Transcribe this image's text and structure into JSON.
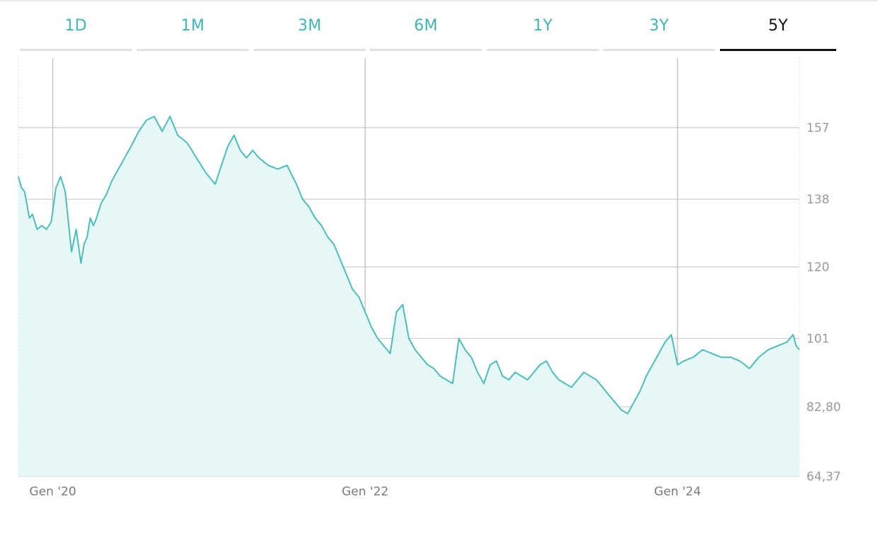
{
  "range_tabs": [
    {
      "label": "1D",
      "active": false
    },
    {
      "label": "1M",
      "active": false
    },
    {
      "label": "3M",
      "active": false
    },
    {
      "label": "6M",
      "active": false
    },
    {
      "label": "1Y",
      "active": false
    },
    {
      "label": "3Y",
      "active": false
    },
    {
      "label": "5Y",
      "active": true
    }
  ],
  "colors": {
    "accent": "#3fb6b3",
    "line": "#4dbdba",
    "fill": "#e6f7f7",
    "grid": "#cccccc",
    "active_tab": "#111111"
  },
  "chart_data": {
    "type": "area",
    "title": "",
    "xlabel": "",
    "ylabel": "",
    "x_ticks": [
      {
        "label": "Gen '20",
        "x": 2020.0
      },
      {
        "label": "Gen '22",
        "x": 2022.0
      },
      {
        "label": "Gen '24",
        "x": 2024.0
      }
    ],
    "y_ticks": [
      {
        "label": "157",
        "value": 157.0
      },
      {
        "label": "138",
        "value": 138.0
      },
      {
        "label": "120",
        "value": 120.0
      },
      {
        "label": "101",
        "value": 101.0
      },
      {
        "label": "82,80",
        "value": 82.8
      },
      {
        "label": "64,37",
        "value": 64.37
      }
    ],
    "xlim": [
      2019.78,
      2024.78
    ],
    "ylim": [
      64.37,
      175.5
    ],
    "grid": true,
    "legend": "none",
    "series": [
      {
        "x": [
          2019.78,
          2019.8,
          2019.82,
          2019.85,
          2019.87,
          2019.9,
          2019.93,
          2019.96,
          2019.99,
          2020.02,
          2020.05,
          2020.08,
          2020.1,
          2020.12,
          2020.15,
          2020.18,
          2020.2,
          2020.22,
          2020.24,
          2020.26,
          2020.28,
          2020.31,
          2020.34,
          2020.38,
          2020.42,
          2020.46,
          2020.5,
          2020.55,
          2020.6,
          2020.65,
          2020.7,
          2020.75,
          2020.8,
          2020.86,
          2020.92,
          2020.98,
          2021.04,
          2021.08,
          2021.12,
          2021.16,
          2021.2,
          2021.24,
          2021.28,
          2021.32,
          2021.38,
          2021.44,
          2021.5,
          2021.56,
          2021.6,
          2021.64,
          2021.68,
          2021.72,
          2021.76,
          2021.8,
          2021.84,
          2021.88,
          2021.92,
          2021.96,
          2022.0,
          2022.04,
          2022.08,
          2022.12,
          2022.16,
          2022.2,
          2022.24,
          2022.28,
          2022.32,
          2022.36,
          2022.4,
          2022.44,
          2022.48,
          2022.52,
          2022.56,
          2022.6,
          2022.64,
          2022.68,
          2022.72,
          2022.76,
          2022.8,
          2022.84,
          2022.88,
          2022.92,
          2022.96,
          2023.0,
          2023.04,
          2023.08,
          2023.12,
          2023.16,
          2023.2,
          2023.24,
          2023.28,
          2023.32,
          2023.36,
          2023.4,
          2023.44,
          2023.48,
          2023.52,
          2023.56,
          2023.6,
          2023.64,
          2023.68,
          2023.72,
          2023.76,
          2023.8,
          2023.84,
          2023.88,
          2023.92,
          2023.96,
          2024.0,
          2024.04,
          2024.1,
          2024.16,
          2024.22,
          2024.28,
          2024.34,
          2024.4,
          2024.46,
          2024.52,
          2024.58,
          2024.64,
          2024.7,
          2024.74,
          2024.76,
          2024.78
        ],
        "values": [
          144,
          141,
          140,
          133,
          134,
          130,
          131,
          130,
          132,
          141,
          144,
          140,
          132,
          124,
          130,
          121,
          126,
          128,
          133,
          131,
          133,
          137,
          139,
          143,
          146,
          149,
          152,
          156,
          159,
          160,
          156,
          160,
          155,
          153,
          149,
          145,
          142,
          147,
          152,
          155,
          151,
          149,
          151,
          149,
          147,
          146,
          147,
          142,
          138,
          136,
          133,
          131,
          128,
          126,
          122,
          118,
          114,
          112,
          108,
          104,
          101,
          99,
          97,
          108,
          110,
          101,
          98,
          96,
          94,
          93,
          91,
          90,
          89,
          101,
          98,
          96,
          92,
          89,
          94,
          95,
          91,
          90,
          92,
          91,
          90,
          92,
          94,
          95,
          92,
          90,
          89,
          88,
          90,
          92,
          91,
          90,
          88,
          86,
          84,
          82,
          81,
          84,
          87,
          91,
          94,
          97,
          100,
          102,
          94,
          95,
          96,
          98,
          97,
          96,
          96,
          95,
          93,
          96,
          98,
          99,
          100,
          102,
          99,
          98
        ]
      }
    ]
  }
}
